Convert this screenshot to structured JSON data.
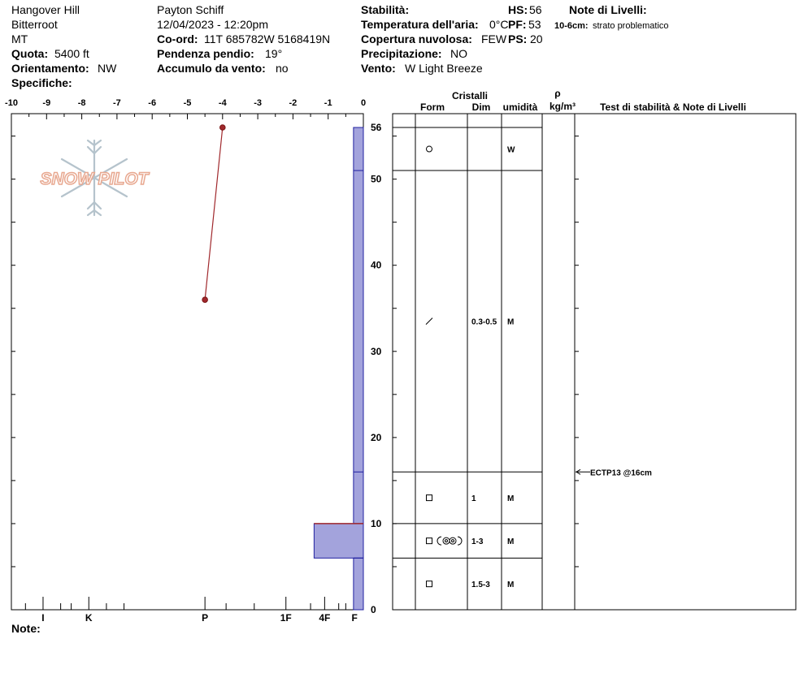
{
  "header": {
    "location": "Hangover Hill",
    "range": "Bitterroot",
    "state": "MT",
    "elevation_label": "Quota:",
    "elevation_value": "5400 ft",
    "aspect_label": "Orientamento:",
    "aspect_value": "NW",
    "specifics_label": "Specifiche:",
    "observer": "Payton Schiff",
    "datetime": "12/04/2023 - 12:20pm",
    "coord_label": "Co-ord:",
    "coord_value": "11T 685782W 5168419N",
    "slope_label": "Pendenza pendio:",
    "slope_value": "19°",
    "wind_loading_label": "Accumulo da vento:",
    "wind_loading_value": "no",
    "stability_label": "Stabilità:",
    "air_temp_label": "Temperatura dell'aria:",
    "air_temp_value": "0°C",
    "cloud_label": "Copertura nuvolosa:",
    "cloud_value": "FEW",
    "precip_label": "Precipitazione:",
    "precip_value": "NO",
    "wind_label": "Vento:",
    "wind_value": "W Light Breeze",
    "hs_label": "HS:",
    "hs_value": "56",
    "pf_label": "PF:",
    "pf_value": "53",
    "ps_label": "PS:",
    "ps_value": "20",
    "layer_notes_label": "Note di Livelli:",
    "layer_note_depth": "10-6cm:",
    "layer_note_text": "strato problematico"
  },
  "logo_text": "SNOW PILOT",
  "notes_label": "Note:",
  "table": {
    "group_header": "Cristalli",
    "col_form": "Form",
    "col_size": "Dim",
    "col_moisture": "umidità",
    "col_density_symbol": "ρ",
    "col_density_unit": "kg/m³",
    "col_tests": "Test di stabilità & Note di Livelli"
  },
  "colors": {
    "temp_line": "#a0282c",
    "hardness_fill": "#a3a3dc",
    "hardness_edge": "#2020a0",
    "logo": "#e8a890"
  },
  "chart_data": {
    "type": "snow_profile",
    "depth_axis": {
      "min": 0,
      "max": 56,
      "ticks": [
        0,
        10,
        20,
        30,
        40,
        50,
        56
      ]
    },
    "temp_axis": {
      "min": -10,
      "max": 0,
      "ticks": [
        -10,
        -9,
        -8,
        -7,
        -6,
        -5,
        -4,
        -3,
        -2,
        -1,
        0
      ]
    },
    "hardness_labels": [
      {
        "label": "I",
        "t": -9.1
      },
      {
        "label": "K",
        "t": -7.8
      },
      {
        "label": "P",
        "t": -4.5
      },
      {
        "label": "1F",
        "t": -2.2
      },
      {
        "label": "4F",
        "t": -1.1
      },
      {
        "label": "F",
        "t": -0.25
      }
    ],
    "temperature_profile": [
      {
        "depth": 56,
        "temp": -4.0
      },
      {
        "depth": 36,
        "temp": -4.5
      }
    ],
    "hardness_layers": [
      {
        "top": 56,
        "bottom": 10,
        "hardness": "F"
      },
      {
        "top": 10,
        "bottom": 6,
        "hardness": "4F+"
      },
      {
        "top": 6,
        "bottom": 0,
        "hardness": "F"
      }
    ],
    "layer_boundaries": [
      56,
      51,
      16,
      10,
      6,
      0
    ],
    "layers": [
      {
        "top": 56,
        "bottom": 51,
        "grain": "circle",
        "size": "",
        "moisture": "W"
      },
      {
        "top": 51,
        "bottom": 16,
        "grain": "slash",
        "size": "0.3-0.5",
        "moisture": "M"
      },
      {
        "top": 16,
        "bottom": 10,
        "grain": "square",
        "size": "1",
        "moisture": "M"
      },
      {
        "top": 10,
        "bottom": 6,
        "grain": "square+rings",
        "size": "1-3",
        "moisture": "M"
      },
      {
        "top": 6,
        "bottom": 0,
        "grain": "square",
        "size": "1.5-3",
        "moisture": "M"
      }
    ],
    "stability_tests": [
      {
        "depth": 16,
        "label": "ECTP13 @16cm"
      }
    ]
  }
}
